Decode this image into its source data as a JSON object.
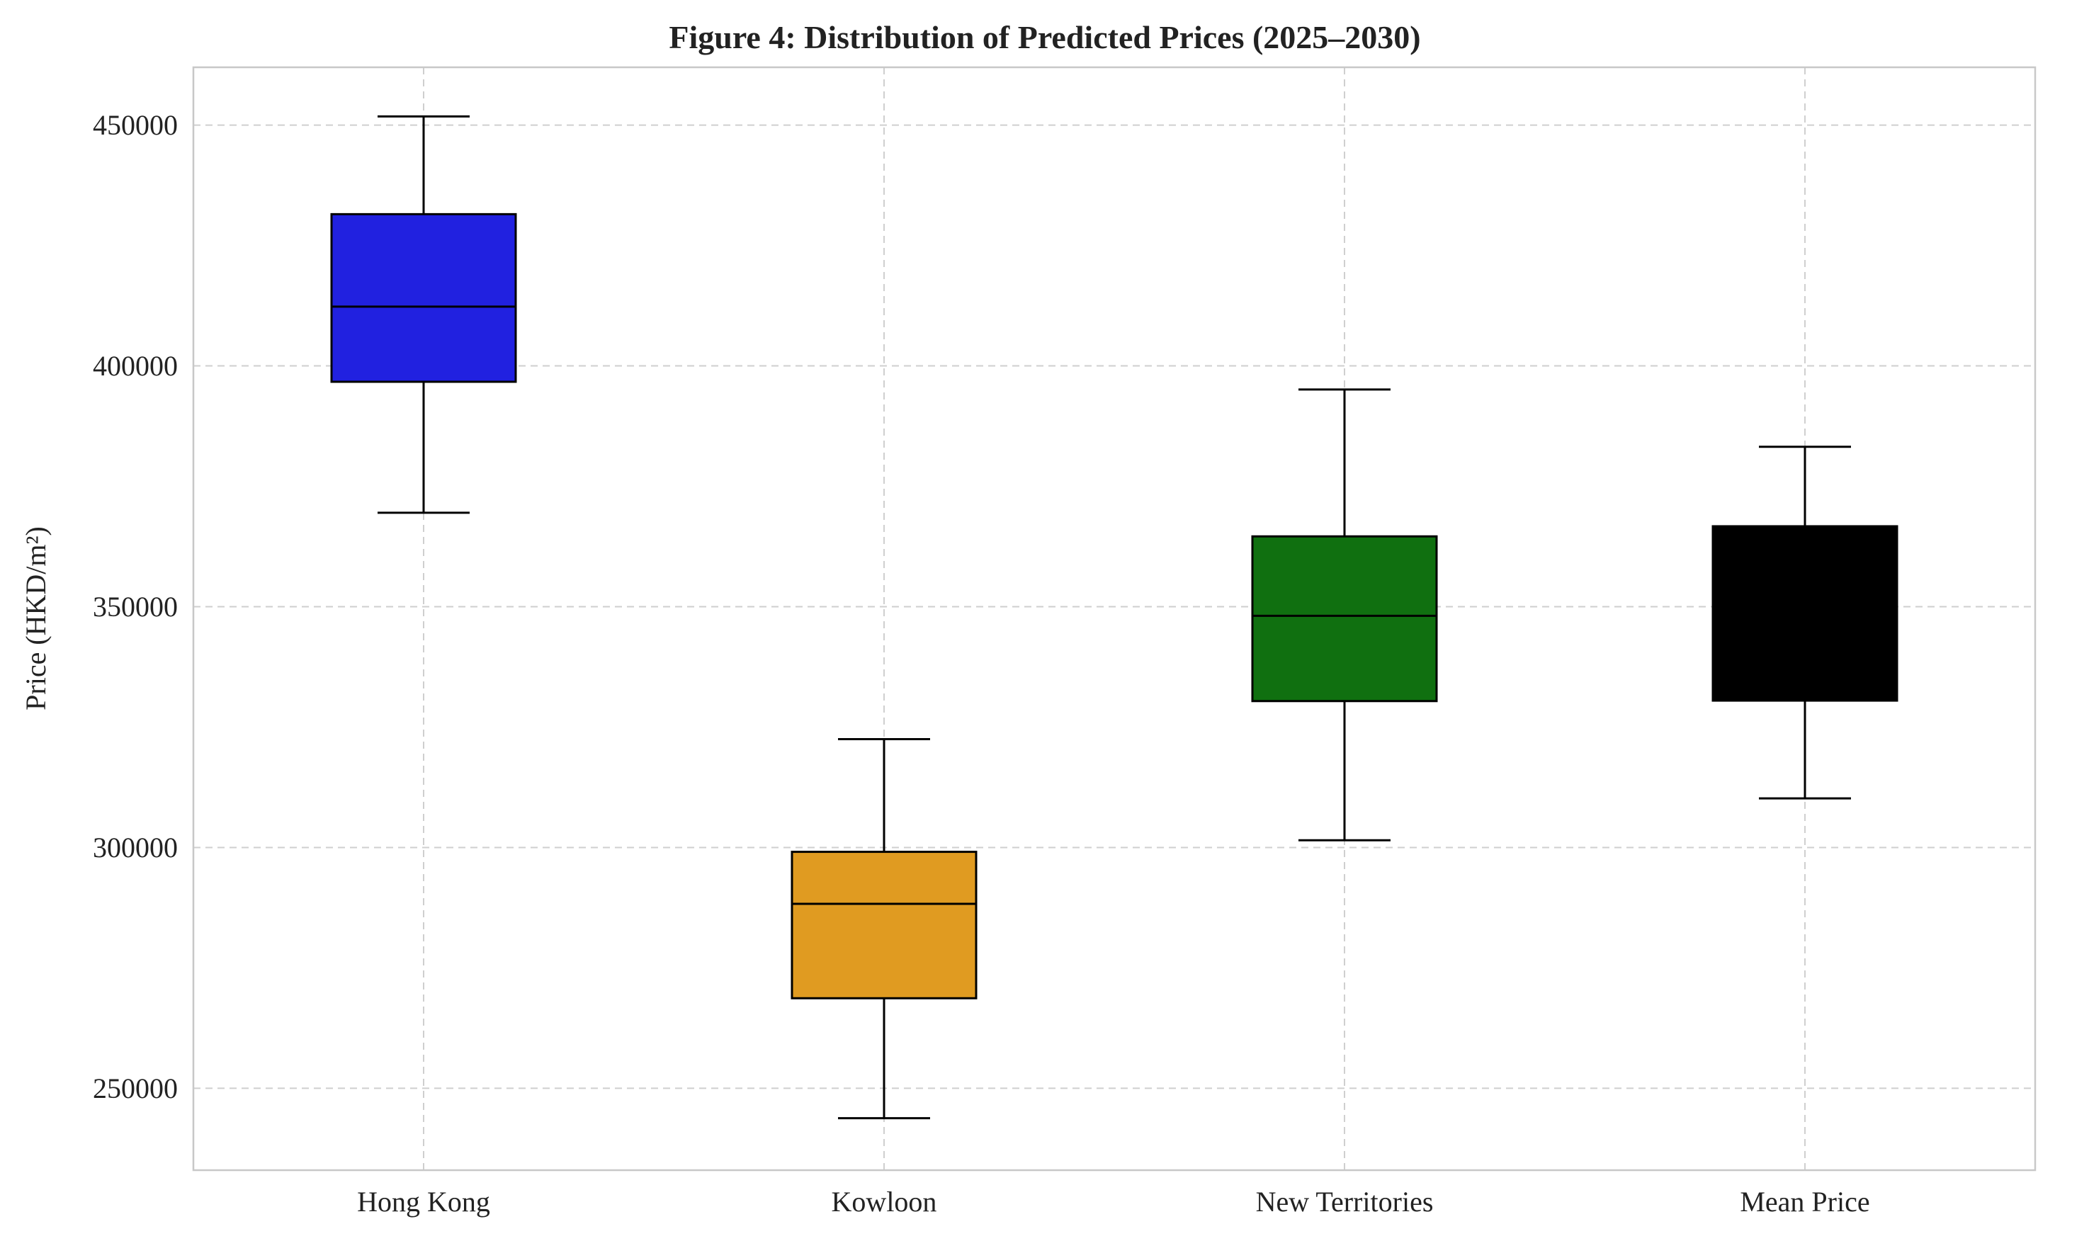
{
  "chart_data": {
    "type": "box",
    "title": "Figure 4: Distribution of Predicted Prices (2025–2030)",
    "xlabel": "",
    "ylabel": "Price (HKD/m²)",
    "ylim": [
      233000,
      462000
    ],
    "yticks": [
      250000,
      300000,
      350000,
      400000,
      450000
    ],
    "grid": true,
    "categories": [
      "Hong Kong",
      "Kowloon",
      "New Territories",
      "Mean Price"
    ],
    "series": [
      {
        "category": "Hong Kong",
        "color": "#2121e0",
        "whislo": 369500,
        "q1": 396700,
        "median": 412300,
        "q3": 431500,
        "whishi": 451800
      },
      {
        "category": "Kowloon",
        "color": "#e09b21",
        "whislo": 243800,
        "q1": 268700,
        "median": 288300,
        "q3": 299100,
        "whishi": 322500
      },
      {
        "category": "New Territories",
        "color": "#107010",
        "whislo": 301500,
        "q1": 330400,
        "median": 348100,
        "q3": 364600,
        "whishi": 395100
      },
      {
        "category": "Mean Price",
        "color": "#000000",
        "whislo": 310200,
        "q1": 330500,
        "median": 348200,
        "q3": 366700,
        "whishi": 383200
      }
    ]
  }
}
